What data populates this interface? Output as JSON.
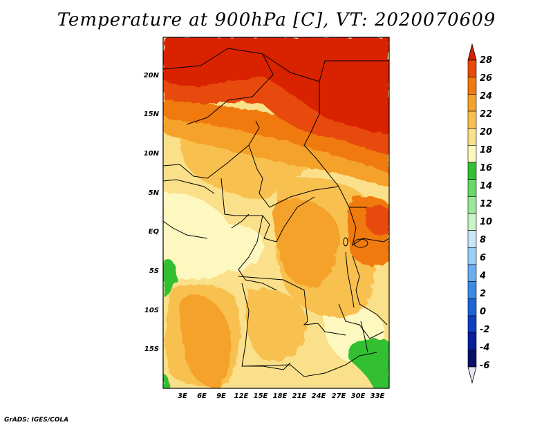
{
  "title": "Temperature at 900hPa [C], VT: 2020070609",
  "credit": "GrADS: IGES/COLA",
  "map": {
    "region": "Central Africa",
    "lat_labels": [
      "20N",
      "15N",
      "10N",
      "5N",
      "EQ",
      "5S",
      "10S",
      "15S"
    ],
    "lon_labels": [
      "3E",
      "6E",
      "9E",
      "12E",
      "15E",
      "18E",
      "21E",
      "24E",
      "27E",
      "30E",
      "33E"
    ],
    "lat_range": [
      -20,
      25
    ],
    "lon_range": [
      0,
      35
    ]
  },
  "colorbar": {
    "labels": [
      "28",
      "26",
      "24",
      "22",
      "20",
      "18",
      "16",
      "14",
      "12",
      "10",
      "8",
      "6",
      "4",
      "2",
      "0",
      "-2",
      "-4",
      "-6"
    ],
    "colors": [
      "#d92000",
      "#e84a08",
      "#f07a10",
      "#f5a22a",
      "#f8c050",
      "#fae08a",
      "#fdf8c0",
      "#33c033",
      "#66d966",
      "#99e899",
      "#c8f5c8",
      "#c8e6fa",
      "#9ccff5",
      "#6aaef0",
      "#3a8ae6",
      "#1c64d8",
      "#0c3ebe",
      "#08209c",
      "#08106a",
      "#e6e6f8"
    ]
  }
}
